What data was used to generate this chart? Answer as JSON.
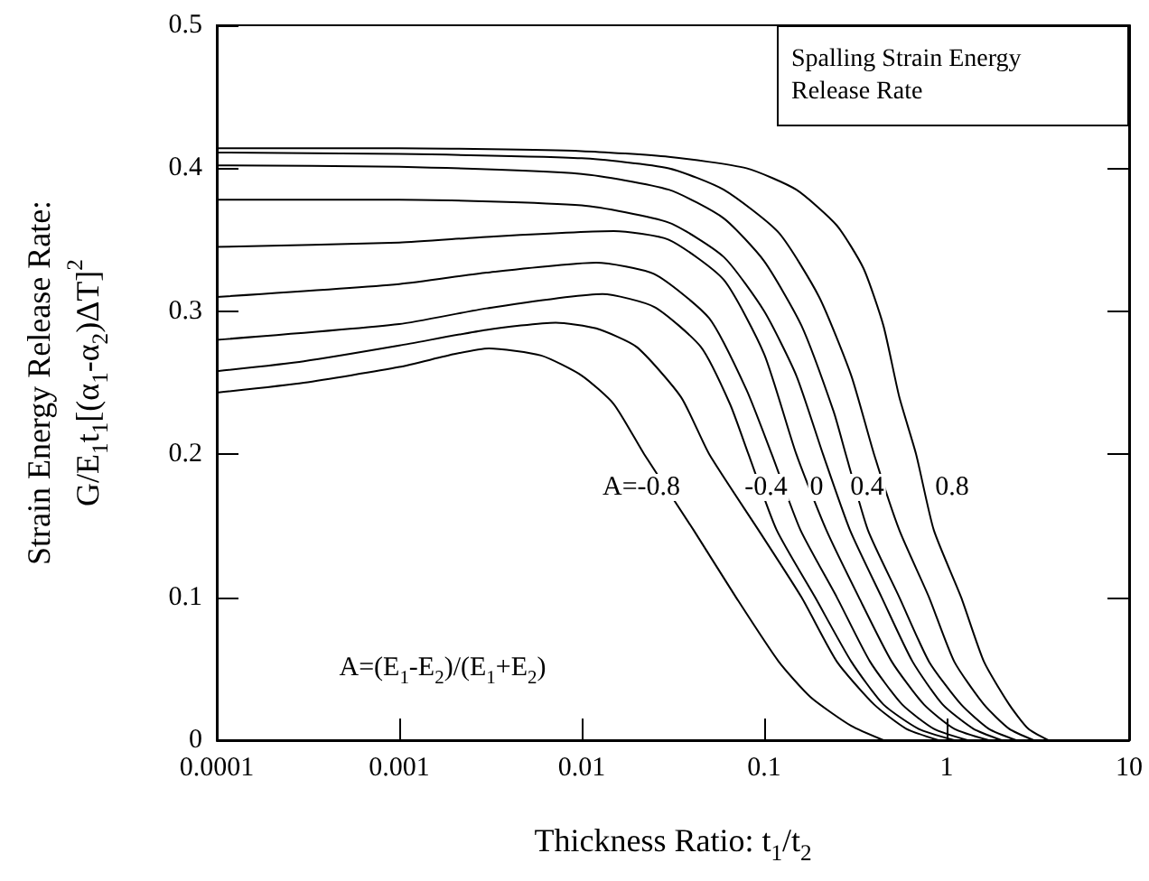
{
  "chart_data": {
    "type": "line",
    "title": "Spalling Strain Energy Release Rate",
    "xlabel": "Thickness Ratio: t$_{1}$/t$_{2}$",
    "ylabel": "Strain Energy Release Rate:\nG/E$_{1}$t$_{1}$[(α$_{1}$-α$_{2}$)ΔT]$^{2}$",
    "log": "x",
    "xlim": [
      0.0001,
      10
    ],
    "xticks": [
      0.0001,
      0.001,
      0.01,
      0.1,
      1,
      10
    ],
    "ylim": [
      0,
      0.5
    ],
    "yticks": [
      0,
      0.1,
      0.2,
      0.3,
      0.4,
      0.5
    ],
    "grid": false,
    "marker": "none",
    "line_style": "solid",
    "series": [
      {
        "color": "#000000",
        "x": [
          0.0001,
          0.0003,
          0.001,
          0.002,
          0.0031,
          0.006,
          0.01,
          0.015,
          0.022,
          0.041,
          0.07,
          0.12,
          0.18,
          0.3,
          0.45
        ],
        "values": [
          0.243,
          0.25,
          0.261,
          0.27,
          0.274,
          0.269,
          0.255,
          0.235,
          0.2,
          0.147,
          0.1,
          0.055,
          0.03,
          0.01,
          0
        ]
      },
      {
        "color": "#000000",
        "x": [
          0.0001,
          0.0003,
          0.001,
          0.003,
          0.0072,
          0.012,
          0.02,
          0.035,
          0.05,
          0.093,
          0.16,
          0.25,
          0.4,
          0.6,
          0.9
        ],
        "values": [
          0.258,
          0.265,
          0.276,
          0.287,
          0.292,
          0.288,
          0.275,
          0.24,
          0.2,
          0.147,
          0.1,
          0.055,
          0.025,
          0.008,
          0
        ]
      },
      {
        "color": "#000000",
        "x": [
          0.0001,
          0.001,
          0.003,
          0.013,
          0.025,
          0.045,
          0.065,
          0.082,
          0.117,
          0.19,
          0.3,
          0.45,
          0.7,
          1.1
        ],
        "values": [
          0.28,
          0.291,
          0.302,
          0.312,
          0.303,
          0.275,
          0.235,
          0.2,
          0.147,
          0.1,
          0.055,
          0.025,
          0.008,
          0
        ]
      },
      {
        "color": "#000000",
        "x": [
          0.0001,
          0.001,
          0.003,
          0.012,
          0.025,
          0.05,
          0.08,
          0.11,
          0.158,
          0.25,
          0.38,
          0.57,
          0.85,
          1.3
        ],
        "values": [
          0.31,
          0.319,
          0.327,
          0.334,
          0.326,
          0.295,
          0.245,
          0.2,
          0.147,
          0.1,
          0.055,
          0.025,
          0.008,
          0
        ]
      },
      {
        "color": "#000000",
        "x": [
          0.0001,
          0.001,
          0.003,
          0.015,
          0.03,
          0.06,
          0.1,
          0.15,
          0.219,
          0.33,
          0.5,
          0.75,
          1.1,
          1.7
        ],
        "values": [
          0.345,
          0.348,
          0.352,
          0.356,
          0.35,
          0.322,
          0.27,
          0.2,
          0.147,
          0.1,
          0.055,
          0.025,
          0.008,
          0
        ]
      },
      {
        "color": "#000000",
        "x": [
          0.0001,
          0.001,
          0.01,
          0.03,
          0.06,
          0.1,
          0.15,
          0.21,
          0.295,
          0.44,
          0.65,
          0.95,
          1.4,
          2
        ],
        "values": [
          0.378,
          0.378,
          0.374,
          0.362,
          0.338,
          0.3,
          0.255,
          0.2,
          0.147,
          0.1,
          0.055,
          0.025,
          0.008,
          0
        ]
      },
      {
        "color": "#000000",
        "x": [
          0.0001,
          0.001,
          0.01,
          0.03,
          0.06,
          0.1,
          0.16,
          0.24,
          0.28,
          0.37,
          0.55,
          0.8,
          1.2,
          1.7,
          2.4
        ],
        "values": [
          0.402,
          0.401,
          0.396,
          0.385,
          0.365,
          0.335,
          0.29,
          0.23,
          0.2,
          0.147,
          0.1,
          0.055,
          0.025,
          0.008,
          0
        ]
      },
      {
        "color": "#000000",
        "x": [
          0.0001,
          0.001,
          0.01,
          0.03,
          0.06,
          0.12,
          0.2,
          0.3,
          0.4,
          0.55,
          0.8,
          1.1,
          1.6,
          2.2,
          3
        ],
        "values": [
          0.411,
          0.41,
          0.407,
          0.4,
          0.385,
          0.355,
          0.31,
          0.255,
          0.2,
          0.147,
          0.1,
          0.055,
          0.025,
          0.008,
          0
        ]
      },
      {
        "color": "#000000",
        "x": [
          0.0001,
          0.001,
          0.01,
          0.03,
          0.08,
          0.15,
          0.25,
          0.35,
          0.45,
          0.55,
          0.68,
          0.85,
          1.2,
          1.6,
          2.2,
          2.8,
          3.6
        ],
        "values": [
          0.414,
          0.414,
          0.412,
          0.408,
          0.4,
          0.385,
          0.36,
          0.33,
          0.29,
          0.24,
          0.2,
          0.147,
          0.1,
          0.055,
          0.025,
          0.008,
          0
        ]
      }
    ],
    "annotations": [
      "A=-0.8",
      "-0.4",
      "0",
      "0.4",
      "0.8",
      "A=(E$_{1}$-E$_{2}$)/(E$_{1}$+E$_{2}$)"
    ]
  }
}
